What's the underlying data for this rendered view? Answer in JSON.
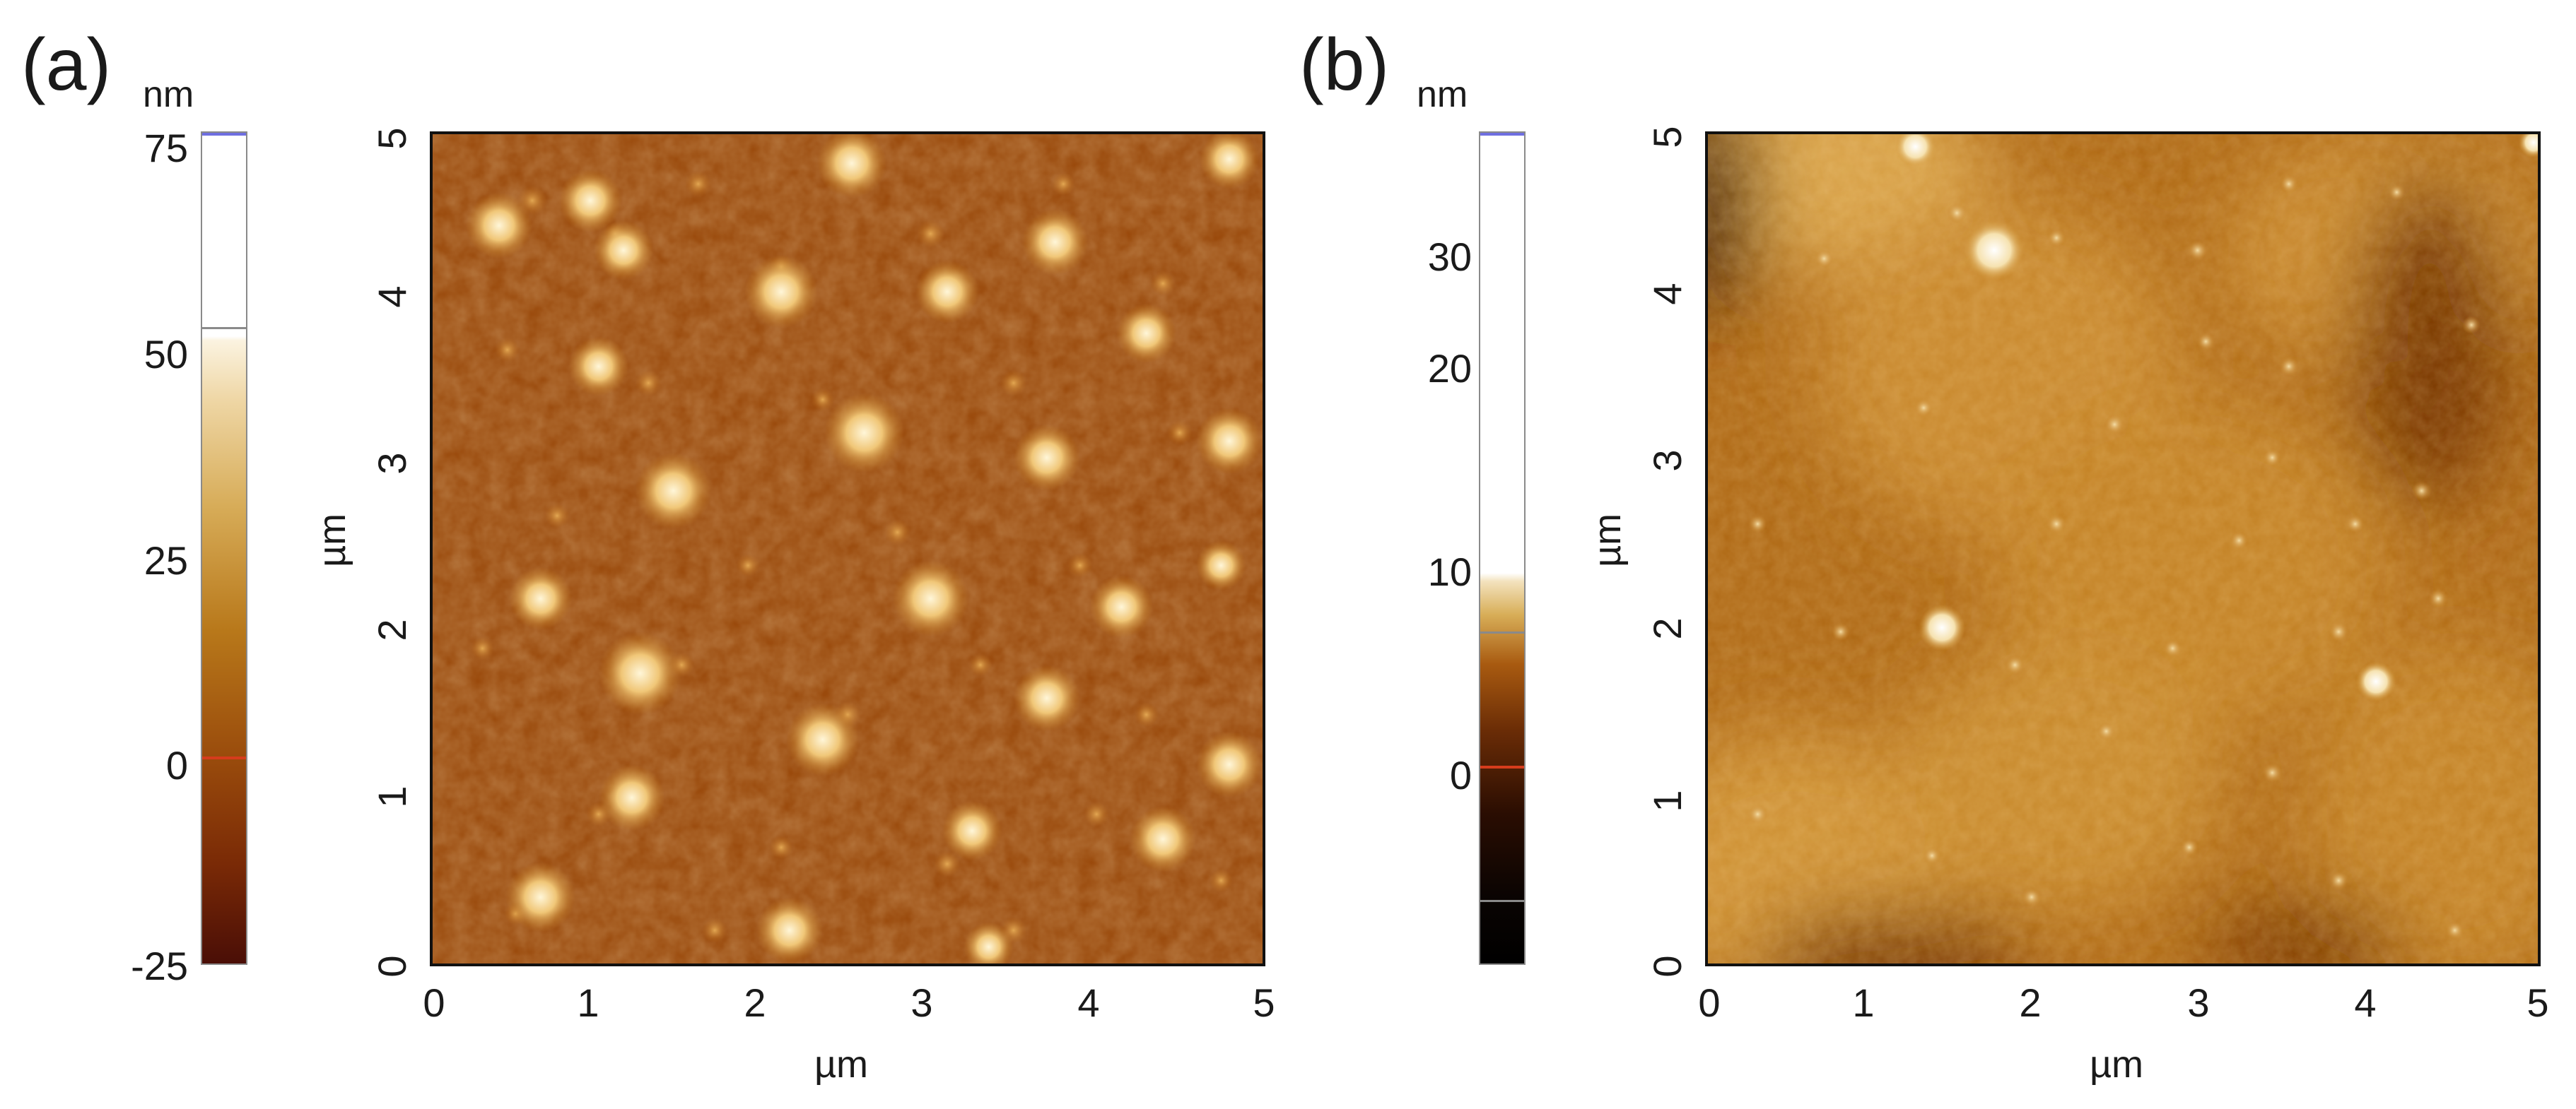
{
  "panels": [
    {
      "label": "(a)",
      "colorbar": {
        "unit": "nm",
        "ticks": [
          "75",
          "50",
          "25",
          "0",
          "-25"
        ],
        "range": [
          -25,
          76
        ],
        "gradient": [
          "#4a0e06",
          "#b86a10",
          "#f3dcae",
          "#ffffff"
        ]
      },
      "image": {
        "xlabel": "µm",
        "ylabel": "µm",
        "xticks": [
          "0",
          "1",
          "2",
          "3",
          "4",
          "5"
        ],
        "yticks": [
          "0",
          "1",
          "2",
          "3",
          "4",
          "5"
        ]
      }
    },
    {
      "label": "(b)",
      "colorbar": {
        "unit": "nm",
        "ticks": [
          "30",
          "20",
          "10",
          "0"
        ],
        "range": [
          -10,
          32
        ],
        "gradient": [
          "#000000",
          "#3b1200",
          "#a85a10",
          "#efd9a6",
          "#ffffff"
        ]
      },
      "image": {
        "xlabel": "µm",
        "ylabel": "µm",
        "xticks": [
          "0",
          "1",
          "2",
          "3",
          "4",
          "5"
        ],
        "yticks": [
          "0",
          "1",
          "2",
          "3",
          "4",
          "5"
        ]
      }
    }
  ],
  "colors": {
    "afm_base": "#9a4a0c",
    "afm_highlight": "#fff6d8",
    "marker_zero": "#d63c1c",
    "marker_top": "#6f6fe0"
  }
}
